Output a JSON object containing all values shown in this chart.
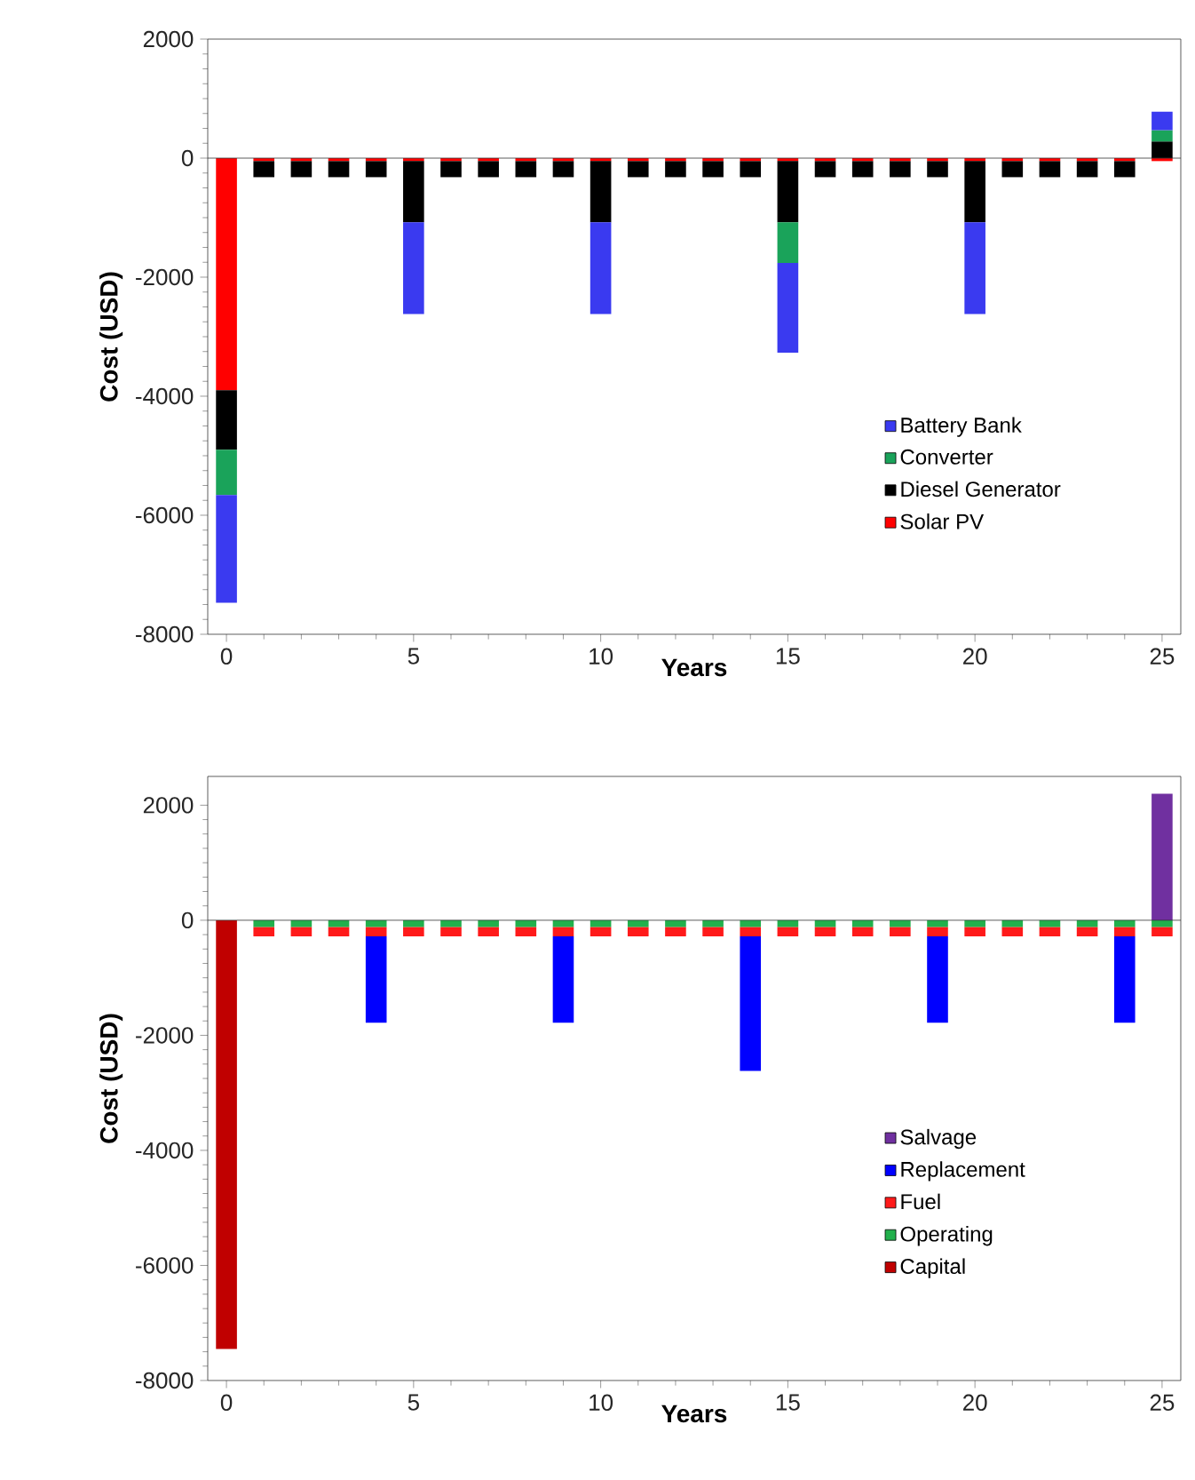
{
  "chart_data": [
    {
      "type": "bar",
      "stacked": true,
      "xlabel": "Years",
      "ylabel": "Cost (USD)",
      "x": [
        0,
        1,
        2,
        3,
        4,
        5,
        6,
        7,
        8,
        9,
        10,
        11,
        12,
        13,
        14,
        15,
        16,
        17,
        18,
        19,
        20,
        21,
        22,
        23,
        24,
        25
      ],
      "series": [
        {
          "name": "Solar PV",
          "color": "#ff0000",
          "values": [
            -3900,
            -50,
            -50,
            -50,
            -50,
            -50,
            -50,
            -50,
            -50,
            -50,
            -50,
            -50,
            -50,
            -50,
            -50,
            -50,
            -50,
            -50,
            -50,
            -50,
            -50,
            -50,
            -50,
            -50,
            -50,
            -50
          ]
        },
        {
          "name": "Diesel Generator",
          "color": "#000000",
          "values": [
            -1000,
            -270,
            -270,
            -270,
            -270,
            -1030,
            -270,
            -270,
            -270,
            -270,
            -1030,
            -270,
            -270,
            -270,
            -270,
            -1030,
            -270,
            -270,
            -270,
            -270,
            -1030,
            -270,
            -270,
            -270,
            -270,
            280
          ]
        },
        {
          "name": "Converter",
          "color": "#1aa35a",
          "values": [
            -760,
            null,
            null,
            null,
            null,
            null,
            null,
            null,
            null,
            null,
            null,
            null,
            null,
            null,
            null,
            -680,
            null,
            null,
            null,
            null,
            null,
            null,
            null,
            null,
            null,
            190
          ]
        },
        {
          "name": "Battery Bank",
          "color": "#3a3af0",
          "values": [
            -1810,
            null,
            null,
            null,
            null,
            -1540,
            null,
            null,
            null,
            null,
            -1540,
            null,
            null,
            null,
            null,
            -1510,
            null,
            null,
            null,
            null,
            -1540,
            null,
            null,
            null,
            null,
            310
          ]
        }
      ],
      "xlim": [
        -0.5,
        25.5
      ],
      "xticks": [
        0,
        5,
        10,
        15,
        20,
        25
      ],
      "ylim": [
        -8000,
        2000
      ],
      "yticks": [
        -8000,
        -6000,
        -4000,
        -2000,
        0,
        2000
      ],
      "legend": "right"
    },
    {
      "type": "bar",
      "stacked": true,
      "xlabel": "Years",
      "ylabel": "Cost (USD)",
      "x": [
        0,
        1,
        2,
        3,
        4,
        5,
        6,
        7,
        8,
        9,
        10,
        11,
        12,
        13,
        14,
        15,
        16,
        17,
        18,
        19,
        20,
        21,
        22,
        23,
        24,
        25
      ],
      "series": [
        {
          "name": "Capital",
          "color": "#c00000",
          "values": [
            -7450,
            null,
            null,
            null,
            null,
            null,
            null,
            null,
            null,
            null,
            null,
            null,
            null,
            null,
            null,
            null,
            null,
            null,
            null,
            null,
            null,
            null,
            null,
            null,
            null,
            null
          ]
        },
        {
          "name": "Operating",
          "color": "#22b04c",
          "values": [
            null,
            -120,
            -120,
            -120,
            -120,
            -120,
            -120,
            -120,
            -120,
            -120,
            -120,
            -120,
            -120,
            -120,
            -120,
            -120,
            -120,
            -120,
            -120,
            -120,
            -120,
            -120,
            -120,
            -120,
            -120,
            -120
          ]
        },
        {
          "name": "Fuel",
          "color": "#ff1a1a",
          "values": [
            null,
            -160,
            -160,
            -160,
            -160,
            -160,
            -160,
            -160,
            -160,
            -160,
            -160,
            -160,
            -160,
            -160,
            -160,
            -160,
            -160,
            -160,
            -160,
            -160,
            -160,
            -160,
            -160,
            -160,
            -160,
            -160
          ]
        },
        {
          "name": "Replacement",
          "color": "#0000ff",
          "values": [
            null,
            null,
            null,
            null,
            -1500,
            null,
            null,
            null,
            null,
            -1500,
            null,
            null,
            null,
            null,
            -2340,
            null,
            null,
            null,
            null,
            -1500,
            null,
            null,
            null,
            null,
            -1500,
            null
          ]
        },
        {
          "name": "Salvage",
          "color": "#7030a0",
          "values": [
            null,
            null,
            null,
            null,
            null,
            null,
            null,
            null,
            null,
            null,
            null,
            null,
            null,
            null,
            null,
            null,
            null,
            null,
            null,
            null,
            null,
            null,
            null,
            null,
            null,
            2200
          ]
        }
      ],
      "xlim": [
        -0.5,
        25.5
      ],
      "xticks": [
        0,
        5,
        10,
        15,
        20,
        25
      ],
      "ylim": [
        -8000,
        2500
      ],
      "yticks": [
        -8000,
        -6000,
        -4000,
        -2000,
        0,
        2000
      ],
      "legend": "right"
    }
  ]
}
